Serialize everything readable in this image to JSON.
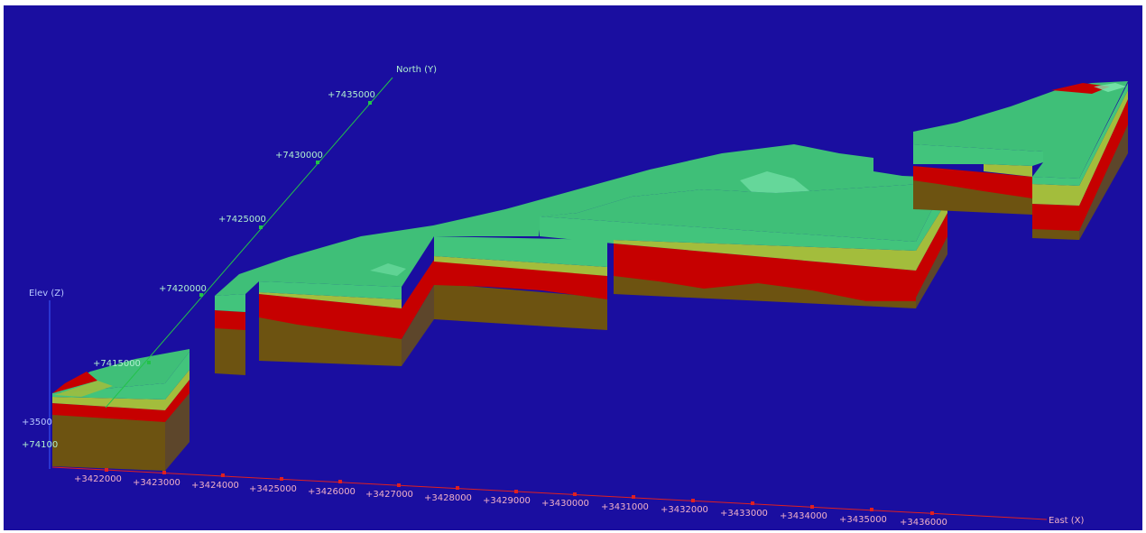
{
  "viewer": {
    "background_color": "#1a0ea0",
    "layer_colors": {
      "surface_top": "#3fbf78",
      "surface_highlight": "#7fe8b0",
      "green_layer": "#42c47c",
      "yellow_layer": "#a3bd3c",
      "red_layer": "#c60000",
      "brown_layer": "#6d5311"
    },
    "axes": {
      "x": {
        "label": "East (X)",
        "color": "#e02020",
        "tick_label_color": "#f0b0c8",
        "ticks": [
          "+3422000",
          "+3423000",
          "+3424000",
          "+3425000",
          "+3426000",
          "+3427000",
          "+3428000",
          "+3429000",
          "+3430000",
          "+3431000",
          "+3432000",
          "+3433000",
          "+3434000",
          "+3435000",
          "+3436000"
        ]
      },
      "y": {
        "label": "North (Y)",
        "color": "#22c24a",
        "tick_label_color": "#b0f0d0",
        "ticks": [
          "+7415000",
          "+7420000",
          "+7425000",
          "+7430000",
          "+7435000"
        ]
      },
      "z": {
        "label": "Elev (Z)",
        "color": "#3a5cff",
        "tick_label_color": "#b8c8ff",
        "ticks": [
          "+3500"
        ]
      },
      "y_partial_tick": "+74100"
    }
  }
}
